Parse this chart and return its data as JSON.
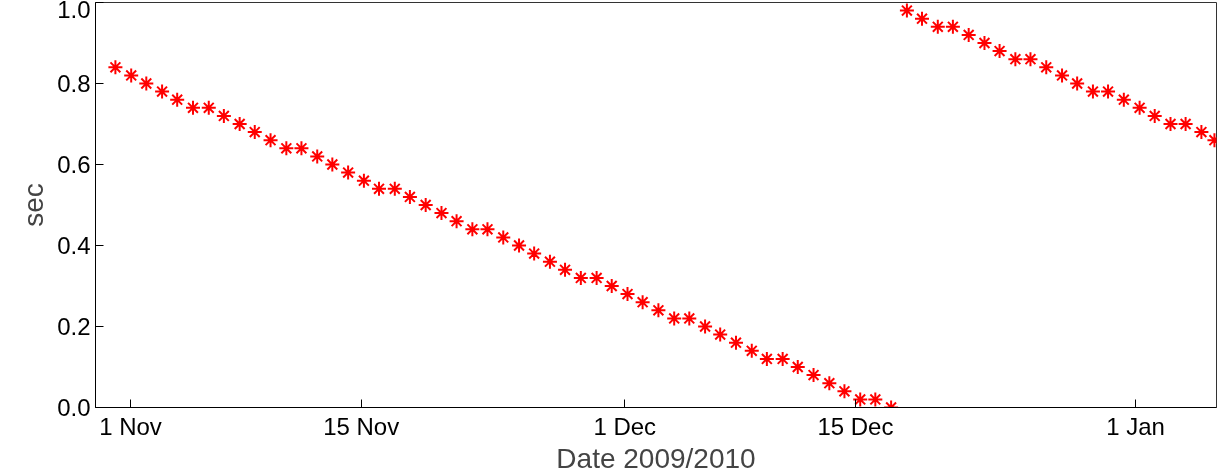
{
  "chart_data": {
    "type": "scatter",
    "xlabel": "Date 2009/2010",
    "ylabel": "sec",
    "xlim": [
      "2009-10-29T21:00",
      "2010-01-05T22:00"
    ],
    "ylim": [
      0,
      1
    ],
    "xticks": [
      {
        "value": "2009-11-01",
        "label": "1 Nov"
      },
      {
        "value": "2009-11-15",
        "label": "15 Nov"
      },
      {
        "value": "2009-12-01",
        "label": "1 Dec"
      },
      {
        "value": "2009-12-15",
        "label": "15 Dec"
      },
      {
        "value": "2010-01-01",
        "label": "1 Jan"
      }
    ],
    "yticks": [
      {
        "value": 0,
        "label": "0.0"
      },
      {
        "value": 0.2,
        "label": "0.2"
      },
      {
        "value": 0.4,
        "label": "0.4"
      },
      {
        "value": 0.6,
        "label": "0.6"
      },
      {
        "value": 0.8,
        "label": "0.8"
      },
      {
        "value": 1,
        "label": "1.0"
      }
    ],
    "grid": false,
    "marker": "cross",
    "series": [
      {
        "color": "#ff0000",
        "x": [
          "2009-10-31T02:00",
          "2009-11-01T01:00",
          "2009-11-01T23:00",
          "2009-11-02T22:00",
          "2009-11-03T20:00",
          "2009-11-04T19:00",
          "2009-11-05T18:00",
          "2009-11-06T16:00",
          "2009-11-07T15:00",
          "2009-11-08T13:00",
          "2009-11-09T12:00",
          "2009-11-10T11:00",
          "2009-11-11T09:00",
          "2009-11-12T08:00",
          "2009-11-13T06:00",
          "2009-11-14T05:00",
          "2009-11-15T04:00",
          "2009-11-16T02:00",
          "2009-11-17T01:00",
          "2009-11-17T23:00",
          "2009-11-18T22:00",
          "2009-11-19T21:00",
          "2009-11-20T19:00",
          "2009-11-21T18:00",
          "2009-11-22T16:00",
          "2009-11-23T15:00",
          "2009-11-24T14:00",
          "2009-11-25T12:00",
          "2009-11-26T11:00",
          "2009-11-27T09:00",
          "2009-11-28T08:00",
          "2009-11-29T07:00",
          "2009-11-30T05:00",
          "2009-12-01T04:00",
          "2009-12-02T02:00",
          "2009-12-03T01:00",
          "2009-12-04T00:00",
          "2009-12-04T22:00",
          "2009-12-05T21:00",
          "2009-12-06T19:00",
          "2009-12-07T18:00",
          "2009-12-08T17:00",
          "2009-12-09T15:00",
          "2009-12-10T14:00",
          "2009-12-11T12:00",
          "2009-12-12T11:00",
          "2009-12-13T10:00",
          "2009-12-14T08:00",
          "2009-12-15T07:00",
          "2009-12-16T05:00",
          "2009-12-17T04:00",
          "2009-12-18T03:00",
          "2009-12-19T01:00",
          "2009-12-20T00:00",
          "2009-12-20T22:00",
          "2009-12-21T21:00",
          "2009-12-22T20:00",
          "2009-12-23T18:00",
          "2009-12-24T17:00",
          "2009-12-25T15:00",
          "2009-12-26T14:00",
          "2009-12-27T13:00",
          "2009-12-28T11:00",
          "2009-12-29T10:00",
          "2009-12-30T08:00",
          "2009-12-31T07:00",
          "2010-01-01T06:00",
          "2010-01-02T04:00",
          "2010-01-03T03:00",
          "2010-01-04T01:00",
          "2010-01-05T00:00",
          "2010-01-05T19:00"
        ],
        "values": [
          0.84,
          0.82,
          0.8,
          0.78,
          0.76,
          0.74,
          0.74,
          0.72,
          0.7,
          0.68,
          0.66,
          0.64,
          0.64,
          0.62,
          0.6,
          0.58,
          0.56,
          0.54,
          0.54,
          0.52,
          0.5,
          0.48,
          0.46,
          0.44,
          0.44,
          0.42,
          0.4,
          0.38,
          0.36,
          0.34,
          0.32,
          0.32,
          0.3,
          0.28,
          0.26,
          0.24,
          0.22,
          0.22,
          0.2,
          0.18,
          0.16,
          0.14,
          0.12,
          0.12,
          0.1,
          0.08,
          0.06,
          0.04,
          0.02,
          0.02,
          0.0,
          0.98,
          0.96,
          0.94,
          0.94,
          0.92,
          0.9,
          0.88,
          0.86,
          0.86,
          0.84,
          0.82,
          0.8,
          0.78,
          0.78,
          0.76,
          0.74,
          0.72,
          0.7,
          0.7,
          0.68,
          0.66
        ]
      }
    ]
  }
}
